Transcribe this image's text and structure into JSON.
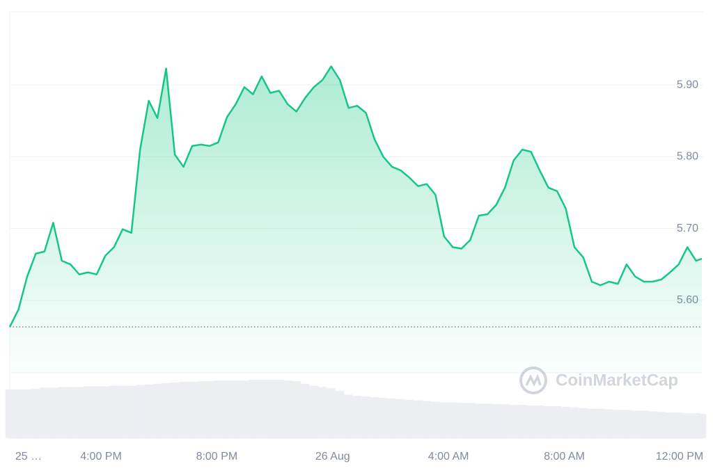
{
  "chart_data": {
    "type": "area",
    "x": [
      12.85,
      13.15,
      13.45,
      13.75,
      14.05,
      14.35,
      14.65,
      14.95,
      15.25,
      15.55,
      15.85,
      16.15,
      16.45,
      16.75,
      17.05,
      17.35,
      17.65,
      17.95,
      18.25,
      18.55,
      18.85,
      19.15,
      19.45,
      19.75,
      20.05,
      20.35,
      20.65,
      20.95,
      21.25,
      21.55,
      21.85,
      22.15,
      22.45,
      22.75,
      23.05,
      23.35,
      23.65,
      23.95,
      24.25,
      24.55,
      24.85,
      25.15,
      25.45,
      25.75,
      26.05,
      26.35,
      26.65,
      26.95,
      27.25,
      27.55,
      27.85,
      28.15,
      28.45,
      28.75,
      29.05,
      29.35,
      29.65,
      29.95,
      30.25,
      30.55,
      30.85,
      31.15,
      31.45,
      31.75,
      32.05,
      32.35,
      32.65,
      32.95,
      33.25,
      33.55,
      33.85,
      34.15,
      34.45,
      34.75,
      35.05,
      35.35,
      35.65,
      35.95,
      36.25,
      36.55,
      36.75
    ],
    "series": [
      {
        "color": "#16c784",
        "values": [
          5.563,
          5.587,
          5.633,
          5.665,
          5.668,
          5.708,
          5.655,
          5.65,
          5.636,
          5.639,
          5.636,
          5.662,
          5.674,
          5.699,
          5.694,
          5.81,
          5.878,
          5.854,
          5.923,
          5.803,
          5.786,
          5.815,
          5.817,
          5.815,
          5.82,
          5.855,
          5.873,
          5.897,
          5.887,
          5.912,
          5.889,
          5.892,
          5.873,
          5.863,
          5.882,
          5.897,
          5.907,
          5.926,
          5.907,
          5.868,
          5.871,
          5.861,
          5.824,
          5.8,
          5.786,
          5.781,
          5.771,
          5.759,
          5.762,
          5.747,
          5.689,
          5.674,
          5.672,
          5.684,
          5.718,
          5.72,
          5.733,
          5.757,
          5.795,
          5.81,
          5.807,
          5.781,
          5.757,
          5.752,
          5.728,
          5.674,
          5.66,
          5.626,
          5.621,
          5.626,
          5.623,
          5.65,
          5.633,
          5.626,
          5.626,
          5.629,
          5.639,
          5.65,
          5.674,
          5.655,
          5.658
        ]
      }
    ],
    "volume": [
      76,
      76,
      76,
      77,
      79,
      79,
      80,
      80,
      80,
      81,
      81,
      81,
      82,
      82,
      82,
      83,
      84,
      85,
      86,
      87,
      88,
      88,
      89,
      89,
      90,
      90,
      90,
      90,
      91,
      91,
      91,
      91,
      90,
      89,
      85,
      82,
      80,
      78,
      74,
      68,
      66,
      65,
      64,
      63,
      62,
      61,
      60,
      59,
      58,
      57,
      56,
      56,
      55,
      55,
      54,
      54,
      53,
      53,
      52,
      52,
      51,
      51,
      50,
      50,
      49,
      48,
      47,
      46,
      46,
      45,
      44,
      44,
      43,
      43,
      42,
      41,
      40,
      40,
      39,
      39,
      38
    ],
    "volume_lim": [
      0,
      100
    ],
    "xlim": [
      12.85,
      36.75
    ],
    "xticks": [
      {
        "value": 13.5,
        "label": "25 …"
      },
      {
        "value": 16,
        "label": "4:00 PM"
      },
      {
        "value": 20,
        "label": "8:00 PM"
      },
      {
        "value": 24,
        "label": "26 Aug"
      },
      {
        "value": 28,
        "label": "4:00 AM"
      },
      {
        "value": 32,
        "label": "8:00 AM"
      },
      {
        "value": 36,
        "label": "12:00 PM"
      }
    ],
    "ylim": [
      5.5,
      6.0
    ],
    "yticks": [
      {
        "value": 5.6,
        "label": "5.60"
      },
      {
        "value": 5.7,
        "label": "5.70"
      },
      {
        "value": 5.8,
        "label": "5.80"
      },
      {
        "value": 5.9,
        "label": "5.90"
      }
    ],
    "grid": true,
    "watermark": "CoinMarketCap"
  }
}
